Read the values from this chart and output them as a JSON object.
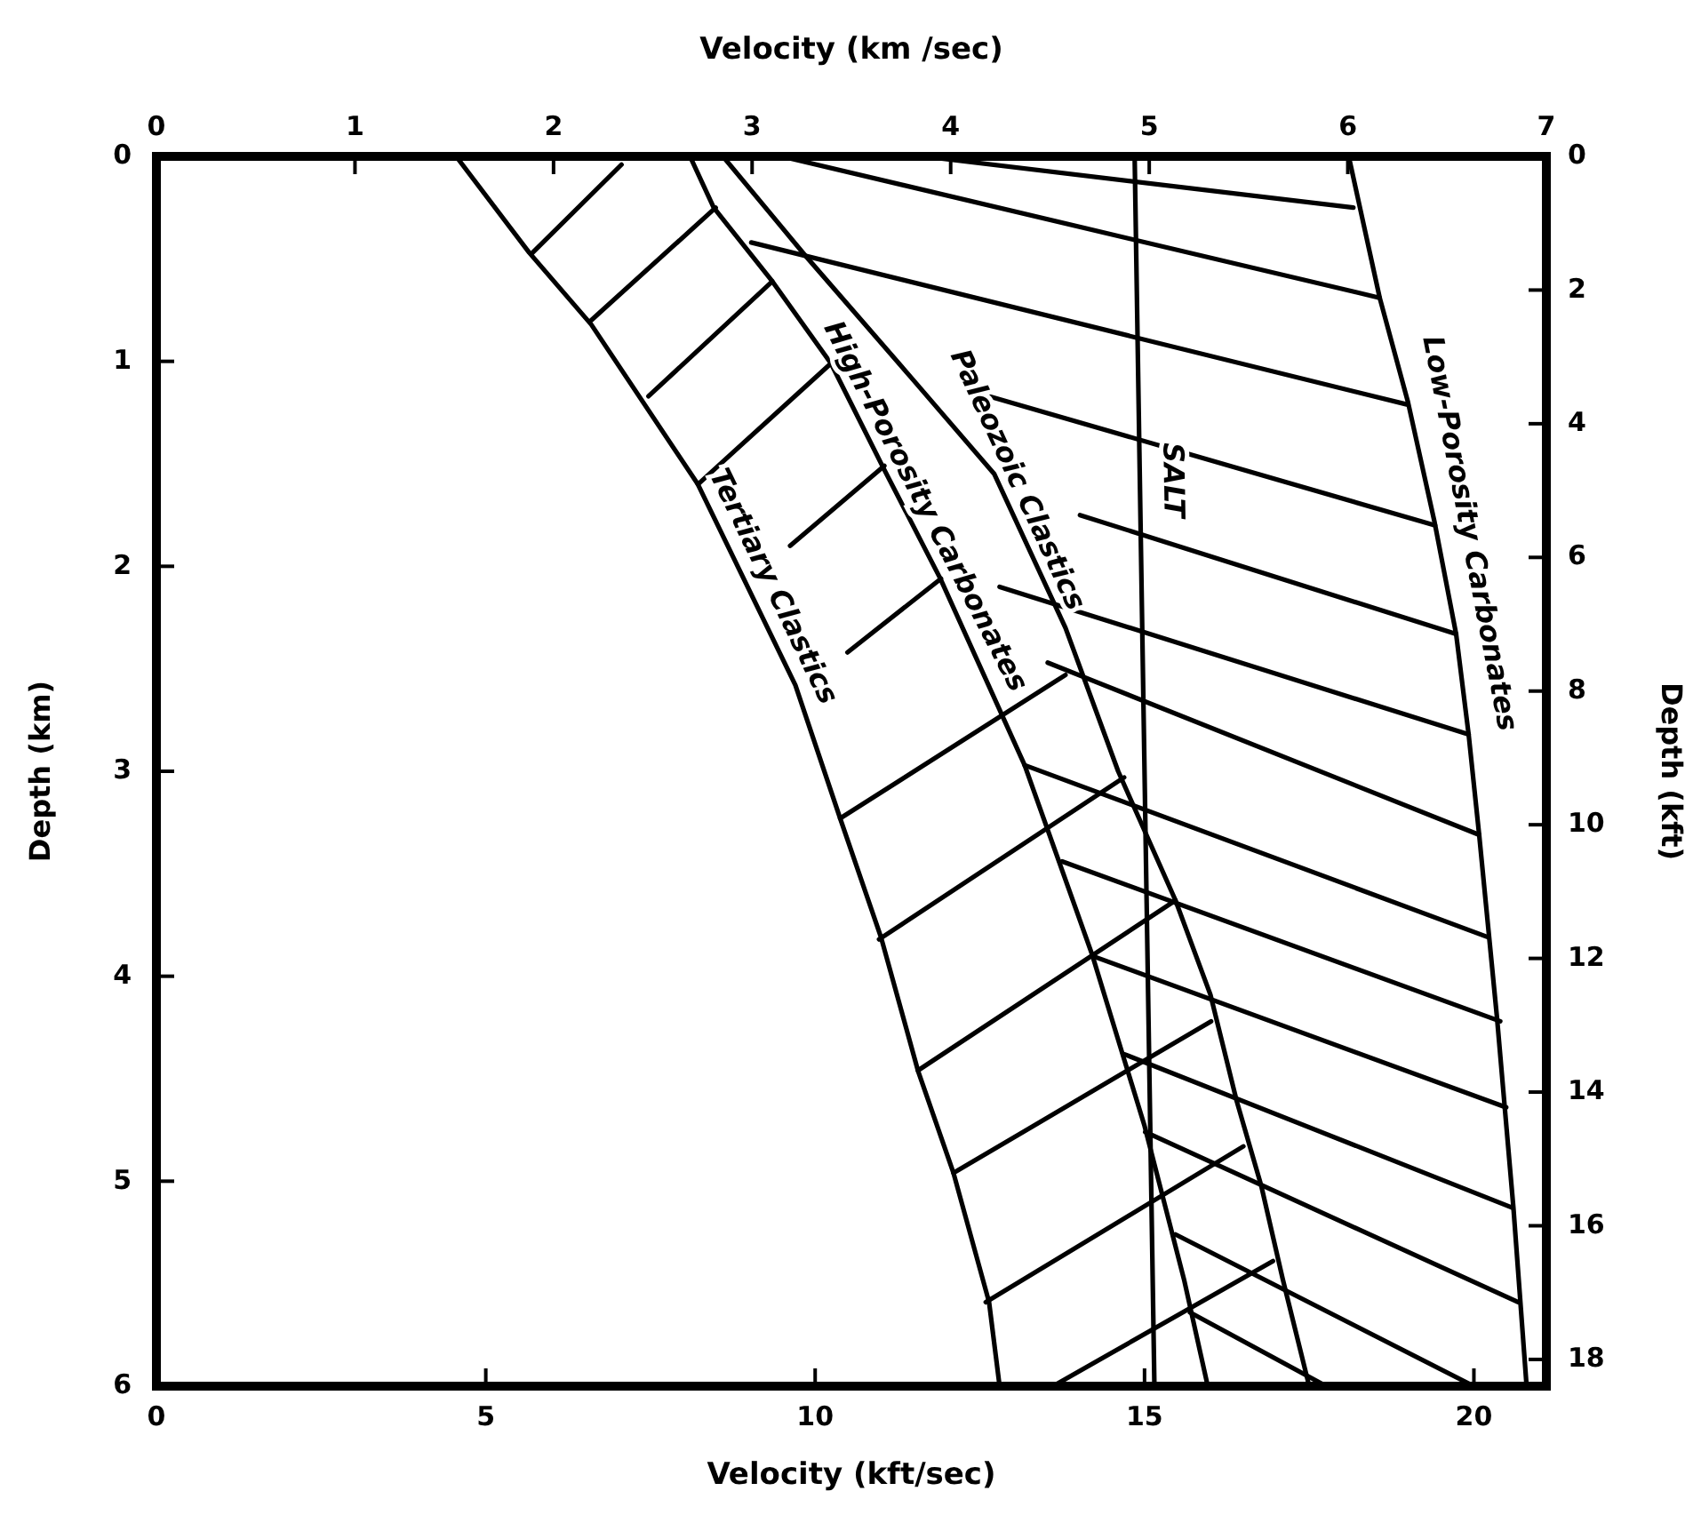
{
  "chart_data": {
    "type": "line",
    "xlabel": "Velocity (kft/sec)",
    "x2label": "Velocity (km /sec)",
    "ylabel": "Depth (km)",
    "y2label": "Depth (kft)",
    "xlim": [
      0,
      21.1
    ],
    "xticks": [
      0,
      5,
      10,
      15,
      20
    ],
    "x2lim": [
      0,
      7
    ],
    "x2ticks": [
      0,
      1,
      2,
      3,
      4,
      5,
      6,
      7
    ],
    "ylim": [
      6,
      0
    ],
    "yticks": [
      0,
      1,
      2,
      3,
      4,
      5,
      6
    ],
    "y2lim": [
      18.4,
      0
    ],
    "y2ticks": [
      0,
      2,
      4,
      6,
      8,
      10,
      12,
      14,
      16,
      18
    ],
    "series": [
      {
        "name": "Tertiary Clastics",
        "color": "#000000",
        "x": [
          4.55,
          5.66,
          6.6,
          8.22,
          9.7,
          10.38,
          11.0,
          11.56,
          12.1,
          12.64,
          12.8
        ],
        "values": [
          0,
          0.47,
          0.82,
          1.6,
          2.58,
          3.23,
          3.81,
          4.46,
          4.96,
          5.59,
          6.0
        ]
      },
      {
        "name": "High-Porosity Carbonates",
        "color": "#000000",
        "x": [
          8.1,
          8.46,
          9.35,
          10.24,
          11.02,
          11.9,
          13.18,
          14.2,
          15.0,
          15.6,
          15.96
        ],
        "values": [
          0,
          0.25,
          0.61,
          1.01,
          1.51,
          2.06,
          2.97,
          3.89,
          4.73,
          5.48,
          6.0
        ]
      },
      {
        "name": "Paleozoic Clastics",
        "color": "#000000",
        "x": [
          8.6,
          9.84,
          11.46,
          12.72,
          13.8,
          14.6,
          15.47,
          16.0,
          16.4,
          16.77,
          17.1,
          17.5
        ],
        "values": [
          0,
          0.48,
          1.08,
          1.55,
          2.3,
          3.0,
          3.63,
          4.09,
          4.61,
          5.02,
          5.48,
          6.0
        ]
      },
      {
        "name": "SALT",
        "color": "#000000",
        "x": [
          14.85,
          15.15
        ],
        "values": [
          0,
          6.0
        ]
      },
      {
        "name": "Low-Porosity Carbonates",
        "color": "#000000",
        "x": [
          18.1,
          18.57,
          19.0,
          19.4,
          19.73,
          19.92,
          20.08,
          20.35,
          20.6,
          20.8
        ],
        "values": [
          0,
          0.69,
          1.2,
          1.78,
          2.33,
          2.82,
          3.31,
          4.2,
          5.13,
          6.0
        ]
      },
      {
        "color": "#000000",
        "x": [
          5.71,
          7.06
        ],
        "values": [
          0.47,
          0.04
        ]
      },
      {
        "color": "#000000",
        "x": [
          6.6,
          8.49
        ],
        "values": [
          0.8,
          0.25
        ]
      },
      {
        "color": "#000000",
        "x": [
          7.47,
          9.35
        ],
        "values": [
          1.17,
          0.61
        ]
      },
      {
        "color": "#000000",
        "x": [
          8.22,
          10.24
        ],
        "values": [
          1.6,
          1.01
        ]
      },
      {
        "color": "#000000",
        "x": [
          9.62,
          11.05
        ],
        "values": [
          1.9,
          1.51
        ]
      },
      {
        "color": "#000000",
        "x": [
          10.49,
          11.91
        ],
        "values": [
          2.42,
          2.06
        ]
      },
      {
        "color": "#000000",
        "x": [
          10.38,
          13.8
        ],
        "values": [
          3.23,
          2.53
        ]
      },
      {
        "color": "#000000",
        "x": [
          10.97,
          14.69
        ],
        "values": [
          3.82,
          3.03
        ]
      },
      {
        "color": "#000000",
        "x": [
          11.56,
          15.47
        ],
        "values": [
          4.46,
          3.63
        ]
      },
      {
        "color": "#000000",
        "x": [
          12.1,
          16.01
        ],
        "values": [
          4.96,
          4.22
        ]
      },
      {
        "color": "#000000",
        "x": [
          12.59,
          16.5
        ],
        "values": [
          5.59,
          4.83
        ]
      },
      {
        "color": "#000000",
        "x": [
          13.61,
          16.95
        ],
        "values": [
          6.0,
          5.39
        ]
      },
      {
        "color": "#000000",
        "x": [
          11.64,
          18.17
        ],
        "values": [
          0,
          0.25
        ]
      },
      {
        "color": "#000000",
        "x": [
          9.49,
          18.57
        ],
        "values": [
          0,
          0.69
        ]
      },
      {
        "color": "#000000",
        "x": [
          9.03,
          18.98
        ],
        "values": [
          0.42,
          1.21
        ]
      },
      {
        "color": "#000000",
        "x": [
          12.64,
          19.41
        ],
        "values": [
          1.17,
          1.8
        ]
      },
      {
        "color": "#000000",
        "x": [
          14.02,
          19.73
        ],
        "values": [
          1.75,
          2.33
        ]
      },
      {
        "color": "#000000",
        "x": [
          12.8,
          19.92
        ],
        "values": [
          2.1,
          2.82
        ]
      },
      {
        "color": "#000000",
        "x": [
          13.53,
          20.08
        ],
        "values": [
          2.47,
          3.31
        ]
      },
      {
        "color": "#000000",
        "x": [
          13.18,
          20.22
        ],
        "values": [
          2.97,
          3.81
        ]
      },
      {
        "color": "#000000",
        "x": [
          13.75,
          20.4
        ],
        "values": [
          3.44,
          4.22
        ]
      },
      {
        "color": "#000000",
        "x": [
          14.2,
          20.49
        ],
        "values": [
          3.9,
          4.64
        ]
      },
      {
        "color": "#000000",
        "x": [
          14.69,
          20.59
        ],
        "values": [
          4.38,
          5.13
        ]
      },
      {
        "color": "#000000",
        "x": [
          15.01,
          20.67
        ],
        "values": [
          4.76,
          5.59
        ]
      },
      {
        "color": "#000000",
        "x": [
          15.47,
          20.0
        ],
        "values": [
          5.26,
          6.0
        ]
      },
      {
        "color": "#000000",
        "x": [
          15.69,
          17.76
        ],
        "values": [
          5.64,
          6.0
        ]
      }
    ]
  }
}
